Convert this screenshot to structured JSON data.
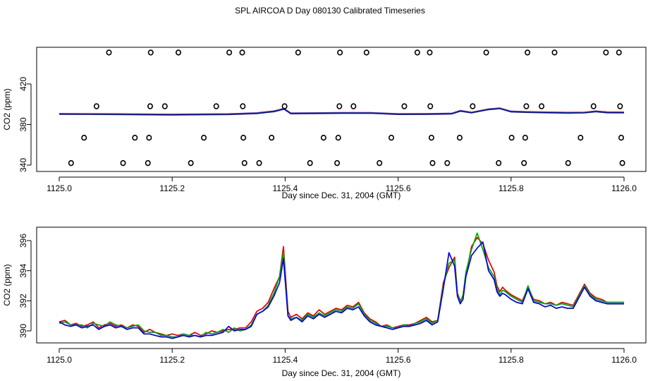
{
  "title": "SPL AIRCOA D  Day 080130  Calibrated Timeseries",
  "chart_data": [
    {
      "type": "scatter",
      "xlabel": "Day since Dec. 31, 2004 (GMT)",
      "ylabel": "CO2 (ppm)",
      "xlim": [
        1125.0,
        1126.0
      ],
      "ylim": [
        338,
        460
      ],
      "xticks": [
        1125.0,
        1125.2,
        1125.4,
        1125.6,
        1125.8,
        1126.0
      ],
      "xtick_labels": [
        "1125.0",
        "1125.2",
        "1125.4",
        "1125.6",
        "1125.8",
        "1126.0"
      ],
      "yticks": [
        340,
        380,
        420
      ],
      "ytick_labels": [
        "340",
        "380",
        "420"
      ],
      "grid": false,
      "colors": {
        "red": "#dd0000",
        "green": "#00aa00",
        "blue": "#0000dd",
        "points": "#000000"
      },
      "points": [
        {
          "x": 1125.021,
          "y": 342
        },
        {
          "x": 1125.044,
          "y": 367
        },
        {
          "x": 1125.066,
          "y": 398
        },
        {
          "x": 1125.088,
          "y": 451
        },
        {
          "x": 1125.113,
          "y": 342
        },
        {
          "x": 1125.134,
          "y": 367
        },
        {
          "x": 1125.157,
          "y": 342
        },
        {
          "x": 1125.159,
          "y": 367
        },
        {
          "x": 1125.161,
          "y": 398
        },
        {
          "x": 1125.162,
          "y": 451
        },
        {
          "x": 1125.187,
          "y": 398
        },
        {
          "x": 1125.211,
          "y": 451
        },
        {
          "x": 1125.233,
          "y": 342
        },
        {
          "x": 1125.256,
          "y": 367
        },
        {
          "x": 1125.278,
          "y": 398
        },
        {
          "x": 1125.301,
          "y": 451
        },
        {
          "x": 1125.324,
          "y": 451
        },
        {
          "x": 1125.325,
          "y": 398
        },
        {
          "x": 1125.326,
          "y": 367
        },
        {
          "x": 1125.328,
          "y": 342
        },
        {
          "x": 1125.354,
          "y": 342
        },
        {
          "x": 1125.376,
          "y": 367
        },
        {
          "x": 1125.399,
          "y": 398
        },
        {
          "x": 1125.423,
          "y": 451
        },
        {
          "x": 1125.444,
          "y": 342
        },
        {
          "x": 1125.468,
          "y": 367
        },
        {
          "x": 1125.492,
          "y": 342
        },
        {
          "x": 1125.494,
          "y": 367
        },
        {
          "x": 1125.496,
          "y": 398
        },
        {
          "x": 1125.497,
          "y": 451
        },
        {
          "x": 1125.521,
          "y": 398
        },
        {
          "x": 1125.544,
          "y": 451
        },
        {
          "x": 1125.567,
          "y": 342
        },
        {
          "x": 1125.588,
          "y": 367
        },
        {
          "x": 1125.611,
          "y": 398
        },
        {
          "x": 1125.634,
          "y": 451
        },
        {
          "x": 1125.656,
          "y": 451
        },
        {
          "x": 1125.657,
          "y": 398
        },
        {
          "x": 1125.659,
          "y": 367
        },
        {
          "x": 1125.661,
          "y": 342
        },
        {
          "x": 1125.687,
          "y": 342
        },
        {
          "x": 1125.709,
          "y": 367
        },
        {
          "x": 1125.732,
          "y": 398
        },
        {
          "x": 1125.756,
          "y": 451
        },
        {
          "x": 1125.778,
          "y": 342
        },
        {
          "x": 1125.801,
          "y": 367
        },
        {
          "x": 1125.823,
          "y": 342
        },
        {
          "x": 1125.825,
          "y": 367
        },
        {
          "x": 1125.827,
          "y": 398
        },
        {
          "x": 1125.829,
          "y": 451
        },
        {
          "x": 1125.854,
          "y": 398
        },
        {
          "x": 1125.877,
          "y": 451
        },
        {
          "x": 1125.901,
          "y": 342
        },
        {
          "x": 1125.923,
          "y": 367
        },
        {
          "x": 1125.946,
          "y": 398
        },
        {
          "x": 1125.968,
          "y": 451
        },
        {
          "x": 1125.991,
          "y": 451
        },
        {
          "x": 1125.993,
          "y": 398
        },
        {
          "x": 1125.995,
          "y": 367
        },
        {
          "x": 1125.997,
          "y": 342
        }
      ],
      "lines": {
        "x": [
          1125.0,
          1125.1,
          1125.2,
          1125.3,
          1125.35,
          1125.38,
          1125.398,
          1125.41,
          1125.45,
          1125.5,
          1125.55,
          1125.6,
          1125.65,
          1125.695,
          1125.71,
          1125.73,
          1125.76,
          1125.78,
          1125.8,
          1125.83,
          1125.9,
          1125.93,
          1125.95,
          1125.97,
          1126.0
        ],
        "y": [
          390.5,
          390.2,
          389.8,
          390.2,
          391.2,
          393,
          395.5,
          391,
          391.2,
          391.4,
          391.5,
          390.3,
          390.4,
          390.8,
          393.5,
          391.8,
          395,
          396,
          392.8,
          392.3,
          391.6,
          391.8,
          393,
          392,
          391.9
        ]
      }
    },
    {
      "type": "line",
      "xlabel": "Day since Dec. 31, 2004 (GMT)",
      "ylabel": "CO2 (ppm)",
      "xlim": [
        1125.0,
        1126.0
      ],
      "ylim": [
        389.5,
        396.6
      ],
      "xticks": [
        1125.0,
        1125.2,
        1125.4,
        1125.6,
        1125.8,
        1126.0
      ],
      "xtick_labels": [
        "1125.0",
        "1125.2",
        "1125.4",
        "1125.6",
        "1125.8",
        "1126.0"
      ],
      "yticks": [
        390,
        392,
        394,
        396
      ],
      "ytick_labels": [
        "390",
        "392",
        "394",
        "396"
      ],
      "grid": false,
      "x": [
        1125.0,
        1125.01,
        1125.02,
        1125.03,
        1125.04,
        1125.05,
        1125.06,
        1125.07,
        1125.08,
        1125.09,
        1125.1,
        1125.11,
        1125.12,
        1125.13,
        1125.14,
        1125.15,
        1125.16,
        1125.17,
        1125.18,
        1125.19,
        1125.2,
        1125.21,
        1125.22,
        1125.23,
        1125.24,
        1125.25,
        1125.26,
        1125.27,
        1125.28,
        1125.29,
        1125.3,
        1125.31,
        1125.32,
        1125.33,
        1125.34,
        1125.35,
        1125.36,
        1125.37,
        1125.38,
        1125.39,
        1125.397,
        1125.405,
        1125.41,
        1125.42,
        1125.43,
        1125.44,
        1125.45,
        1125.46,
        1125.47,
        1125.48,
        1125.49,
        1125.5,
        1125.51,
        1125.52,
        1125.53,
        1125.54,
        1125.55,
        1125.56,
        1125.57,
        1125.58,
        1125.59,
        1125.6,
        1125.61,
        1125.62,
        1125.63,
        1125.64,
        1125.65,
        1125.66,
        1125.67,
        1125.68,
        1125.69,
        1125.7,
        1125.705,
        1125.71,
        1125.715,
        1125.72,
        1125.73,
        1125.74,
        1125.75,
        1125.76,
        1125.77,
        1125.775,
        1125.78,
        1125.785,
        1125.79,
        1125.8,
        1125.81,
        1125.82,
        1125.83,
        1125.84,
        1125.85,
        1125.86,
        1125.87,
        1125.88,
        1125.89,
        1125.9,
        1125.91,
        1125.92,
        1125.93,
        1125.94,
        1125.95,
        1125.96,
        1125.97,
        1125.98,
        1125.99,
        1126.0
      ],
      "series": [
        {
          "color": "#dd0000",
          "values": [
            390.6,
            390.7,
            390.4,
            390.5,
            390.3,
            390.4,
            390.6,
            390.2,
            390.4,
            390.5,
            390.3,
            390.4,
            390.2,
            390.4,
            390.3,
            389.9,
            390.1,
            389.9,
            389.8,
            389.7,
            389.8,
            389.7,
            389.8,
            389.7,
            389.9,
            389.7,
            389.8,
            390.0,
            389.9,
            390.0,
            390.1,
            390.1,
            390.2,
            390.2,
            390.6,
            391.3,
            391.5,
            391.9,
            392.8,
            393.6,
            395.6,
            391.3,
            390.9,
            391.1,
            390.8,
            391.2,
            391.0,
            391.4,
            391.1,
            391.3,
            391.5,
            391.4,
            391.7,
            391.6,
            391.9,
            391.2,
            390.8,
            390.6,
            390.3,
            390.4,
            390.2,
            390.3,
            390.4,
            390.4,
            390.5,
            390.7,
            390.9,
            390.6,
            390.7,
            393.2,
            394.2,
            394.9,
            392.5,
            392.0,
            392.3,
            393.7,
            395.6,
            396.2,
            395.8,
            394.7,
            393.9,
            393.0,
            392.6,
            392.9,
            392.7,
            392.4,
            392.2,
            392.0,
            392.9,
            392.1,
            392.0,
            391.8,
            391.9,
            391.7,
            391.9,
            391.8,
            391.7,
            392.4,
            393.1,
            392.5,
            392.2,
            392.1,
            391.9,
            391.9,
            391.9,
            391.9
          ]
        },
        {
          "color": "#00aa00",
          "values": [
            390.5,
            390.6,
            390.4,
            390.4,
            390.4,
            390.2,
            390.5,
            390.4,
            390.3,
            390.6,
            390.4,
            390.3,
            390.2,
            390.3,
            390.4,
            390.0,
            389.9,
            389.9,
            389.7,
            389.7,
            389.6,
            389.6,
            389.8,
            389.7,
            389.7,
            389.6,
            389.9,
            389.8,
            389.9,
            390.1,
            389.9,
            390.2,
            390.0,
            390.1,
            390.4,
            391.1,
            391.3,
            391.7,
            392.5,
            393.6,
            395.2,
            391.0,
            390.8,
            390.9,
            390.7,
            391.1,
            390.9,
            391.2,
            391.0,
            391.2,
            391.4,
            391.3,
            391.6,
            391.5,
            391.8,
            391.1,
            390.7,
            390.5,
            390.3,
            390.3,
            390.2,
            390.2,
            390.4,
            390.3,
            390.5,
            390.6,
            390.8,
            390.5,
            390.7,
            393.0,
            394.5,
            394.7,
            392.4,
            391.9,
            392.4,
            393.9,
            395.4,
            396.5,
            395.4,
            394.2,
            393.6,
            392.8,
            392.4,
            392.7,
            392.6,
            392.3,
            392.1,
            391.9,
            393.0,
            392.0,
            391.9,
            391.8,
            391.8,
            391.7,
            391.8,
            391.7,
            391.6,
            392.3,
            393.0,
            392.4,
            392.1,
            392.0,
            391.9,
            391.9,
            391.9,
            391.9
          ]
        },
        {
          "color": "#0000dd",
          "values": [
            390.6,
            390.4,
            390.3,
            390.4,
            390.2,
            390.3,
            390.4,
            390.1,
            390.3,
            390.4,
            390.2,
            390.3,
            390.1,
            390.2,
            390.2,
            389.8,
            389.8,
            389.7,
            389.6,
            389.6,
            389.5,
            389.6,
            389.7,
            389.6,
            389.7,
            389.6,
            389.7,
            389.7,
            389.8,
            389.9,
            390.3,
            390.0,
            390.1,
            390.1,
            390.3,
            391.1,
            391.3,
            391.6,
            392.3,
            393.2,
            394.8,
            391.0,
            390.7,
            390.9,
            390.6,
            391.0,
            390.8,
            391.1,
            390.9,
            391.1,
            391.3,
            391.2,
            391.5,
            391.4,
            391.6,
            391.0,
            390.6,
            390.4,
            390.3,
            390.2,
            390.1,
            390.2,
            390.3,
            390.3,
            390.4,
            390.5,
            390.7,
            390.4,
            390.6,
            392.8,
            395.2,
            394.3,
            392.3,
            391.8,
            392.1,
            393.6,
            395.0,
            395.5,
            395.9,
            394.0,
            393.4,
            392.6,
            392.3,
            392.5,
            392.4,
            392.1,
            391.9,
            391.8,
            392.8,
            391.9,
            391.8,
            391.6,
            391.7,
            391.5,
            391.6,
            391.5,
            391.5,
            392.2,
            392.9,
            392.3,
            392.0,
            391.9,
            391.8,
            391.8,
            391.8,
            391.8
          ]
        }
      ]
    }
  ]
}
